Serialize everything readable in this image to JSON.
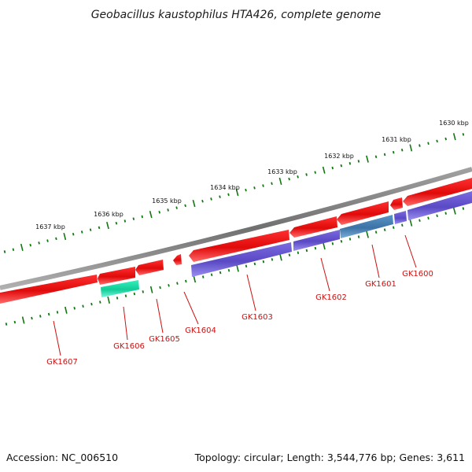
{
  "title": "Geobacillus kaustophilus HTA426, complete genome",
  "footer": {
    "accession": "Accession: NC_006510",
    "summary": "Topology: circular; Length: 3,544,776 bp; Genes: 3,611"
  },
  "ruler_labels": [
    "1630 kbp",
    "1631 kbp",
    "1632 kbp",
    "1633 kbp",
    "1634 kbp",
    "1635 kbp",
    "1636 kbp",
    "1637 kbp"
  ],
  "gene_labels": [
    "GK1600",
    "GK1601",
    "GK1602",
    "GK1603",
    "GK1604",
    "GK1605",
    "GK1606",
    "GK1607"
  ],
  "colors": {
    "backbone": "#808080",
    "forward_cds": "#ee1111",
    "reverse_cds": "#6a5acd",
    "rna_feature": "#22ddaa",
    "overlap_feature": "#4682b4",
    "tick": "#117711",
    "label": "#cc1111"
  }
}
